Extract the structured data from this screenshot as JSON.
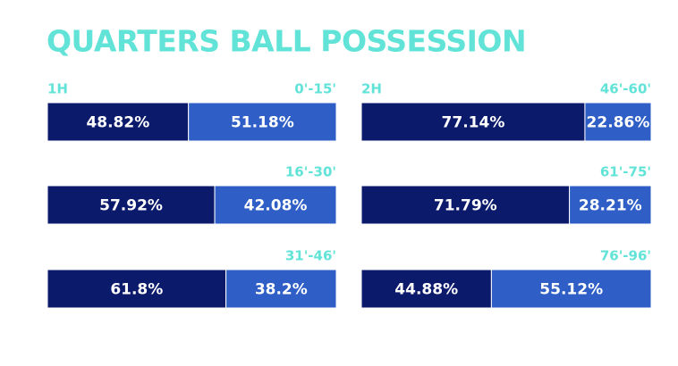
{
  "chart_data": {
    "type": "stacked-bar",
    "title": "QUARTERS BALL POSSESSION",
    "xlim": [
      0,
      100
    ],
    "panels": [
      {
        "label": "1H",
        "categories": [
          "0'-15'",
          "16'-30'",
          "31'-46'"
        ],
        "series": [
          {
            "color": "#0c1a6b",
            "values": [
              48.82,
              57.92,
              61.8
            ],
            "value_labels": [
              "48.82%",
              "57.92%",
              "61.8%"
            ]
          },
          {
            "color": "#2e5ec6",
            "values": [
              51.18,
              42.08,
              38.2
            ],
            "value_labels": [
              "51.18%",
              "42.08%",
              "38.2%"
            ]
          }
        ]
      },
      {
        "label": "2H",
        "categories": [
          "46'-60'",
          "61'-75'",
          "76'-96'"
        ],
        "series": [
          {
            "color": "#0c1a6b",
            "values": [
              77.14,
              71.79,
              44.88
            ],
            "value_labels": [
              "77.14%",
              "71.79%",
              "44.88%"
            ]
          },
          {
            "color": "#2e5ec6",
            "values": [
              22.86,
              28.21,
              55.12
            ],
            "value_labels": [
              "22.86%",
              "28.21%",
              "55.12%"
            ]
          }
        ]
      }
    ]
  }
}
